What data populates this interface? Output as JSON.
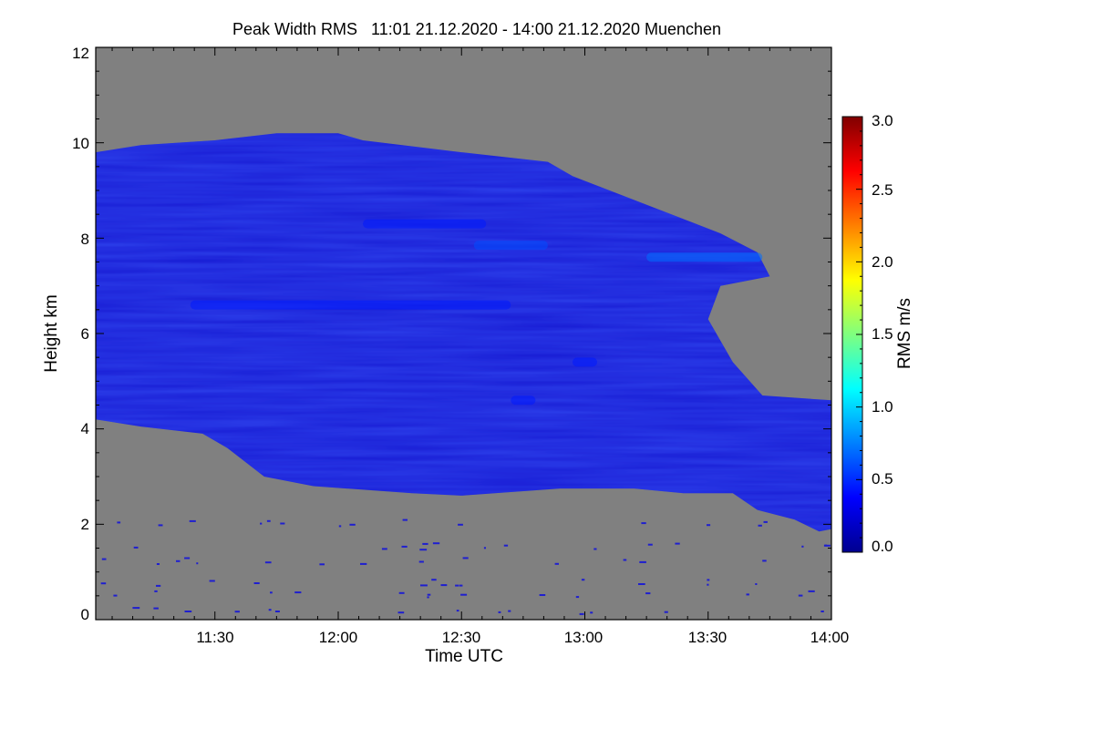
{
  "chart_data": {
    "type": "heatmap",
    "title": "Peak Width RMS   11:01 21.12.2020 - 14:00 21.12.2020 Muenchen",
    "xlabel": "Time UTC",
    "ylabel": "Height km",
    "x_ticks": [
      {
        "label": "11:30",
        "value": 11.5
      },
      {
        "label": "12:00",
        "value": 12.0
      },
      {
        "label": "12:30",
        "value": 12.5
      },
      {
        "label": "13:00",
        "value": 13.0
      },
      {
        "label": "13:30",
        "value": 13.5
      },
      {
        "label": "14:00",
        "value": 14.0
      }
    ],
    "y_ticks": [
      {
        "label": "0",
        "value": 0
      },
      {
        "label": "2",
        "value": 2
      },
      {
        "label": "4",
        "value": 4
      },
      {
        "label": "6",
        "value": 6
      },
      {
        "label": "8",
        "value": 8
      },
      {
        "label": "10",
        "value": 10
      },
      {
        "label": "12",
        "value": 12
      }
    ],
    "xlim": [
      11.0167,
      14.0
    ],
    "ylim": [
      0,
      12
    ],
    "colorbar": {
      "label": "RMS m/s",
      "range": [
        0.0,
        3.0
      ],
      "tick_labels": [
        "0.0",
        "0.5",
        "1.0",
        "1.5",
        "2.0",
        "2.5",
        "3.0"
      ],
      "tick_values": [
        0.0,
        0.5,
        1.0,
        1.5,
        2.0,
        2.5,
        3.0
      ]
    },
    "no_data_color": "#808080",
    "cloud_color": "#1a1fd6",
    "echo_region": {
      "top_km": [
        [
          11.0167,
          9.8
        ],
        [
          11.2,
          9.95
        ],
        [
          11.5,
          10.05
        ],
        [
          11.75,
          10.2
        ],
        [
          12.0,
          10.2
        ],
        [
          12.1,
          10.05
        ],
        [
          12.5,
          9.8
        ],
        [
          12.85,
          9.6
        ],
        [
          12.95,
          9.3
        ],
        [
          13.3,
          8.6
        ],
        [
          13.55,
          8.1
        ],
        [
          13.7,
          7.7
        ],
        [
          13.75,
          7.2
        ],
        [
          13.55,
          7.0
        ],
        [
          13.5,
          6.3
        ],
        [
          13.6,
          5.4
        ],
        [
          13.72,
          4.7
        ],
        [
          14.0,
          4.6
        ]
      ],
      "base_km": [
        [
          11.0167,
          4.2
        ],
        [
          11.2,
          4.05
        ],
        [
          11.45,
          3.9
        ],
        [
          11.55,
          3.6
        ],
        [
          11.7,
          3.0
        ],
        [
          11.9,
          2.8
        ],
        [
          12.3,
          2.65
        ],
        [
          12.5,
          2.6
        ],
        [
          12.9,
          2.75
        ],
        [
          13.2,
          2.75
        ],
        [
          13.4,
          2.65
        ],
        [
          13.6,
          2.65
        ],
        [
          13.7,
          2.3
        ],
        [
          13.85,
          2.1
        ],
        [
          13.95,
          1.85
        ],
        [
          14.0,
          1.9
        ]
      ]
    },
    "enhanced_layers": [
      {
        "t0": 12.55,
        "t1": 12.85,
        "h": 7.85,
        "value": 0.6
      },
      {
        "t0": 13.25,
        "t1": 13.72,
        "h": 7.6,
        "value": 0.7
      },
      {
        "t0": 11.4,
        "t1": 12.7,
        "h": 6.6,
        "value": 0.45
      },
      {
        "t0": 12.1,
        "t1": 12.6,
        "h": 8.3,
        "value": 0.45
      },
      {
        "t0": 12.95,
        "t1": 13.05,
        "h": 5.4,
        "value": 0.45
      },
      {
        "t0": 12.7,
        "t1": 12.8,
        "h": 4.6,
        "value": 0.45
      }
    ]
  }
}
